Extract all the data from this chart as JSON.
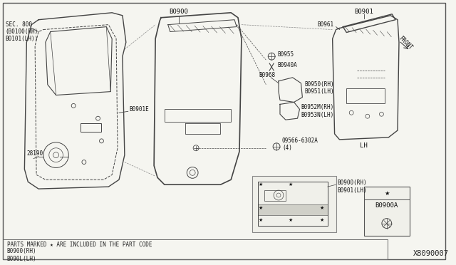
{
  "bg_color": "#f5f5f0",
  "border_color": "#333333",
  "line_color": "#444444",
  "title_diagram_id": "X8090007",
  "footer_text": "PARTS MARKED ★ ARE INCLUDED IN THE PART CODE",
  "footer_code": "B0900(RH)\nB090L(LH)",
  "labels": {
    "SEC800": "SEC. 800\n(B0100(RH)\nB0101(LH))",
    "B0900": "B0900",
    "B0901": "B0901",
    "B0961": "B0961",
    "B0955": "B0955",
    "B0940A": "B0940A",
    "B0968": "B0968",
    "B0950RH": "B0950(RH)\nB0951(LH)",
    "B0952RH": "B0952M(RH)\nB0953N(LH)",
    "B09566": "09566-6302A\n(4)",
    "B0901E": "B0901E",
    "B28190": "28190",
    "LH": "LH",
    "FRONT": "FRONT",
    "B0900A": "B0900A",
    "B0900RH2": "B0900(RH)\nB0901(LH)"
  },
  "font_size_main": 6.5,
  "font_size_small": 5.5,
  "font_size_id": 7.5
}
